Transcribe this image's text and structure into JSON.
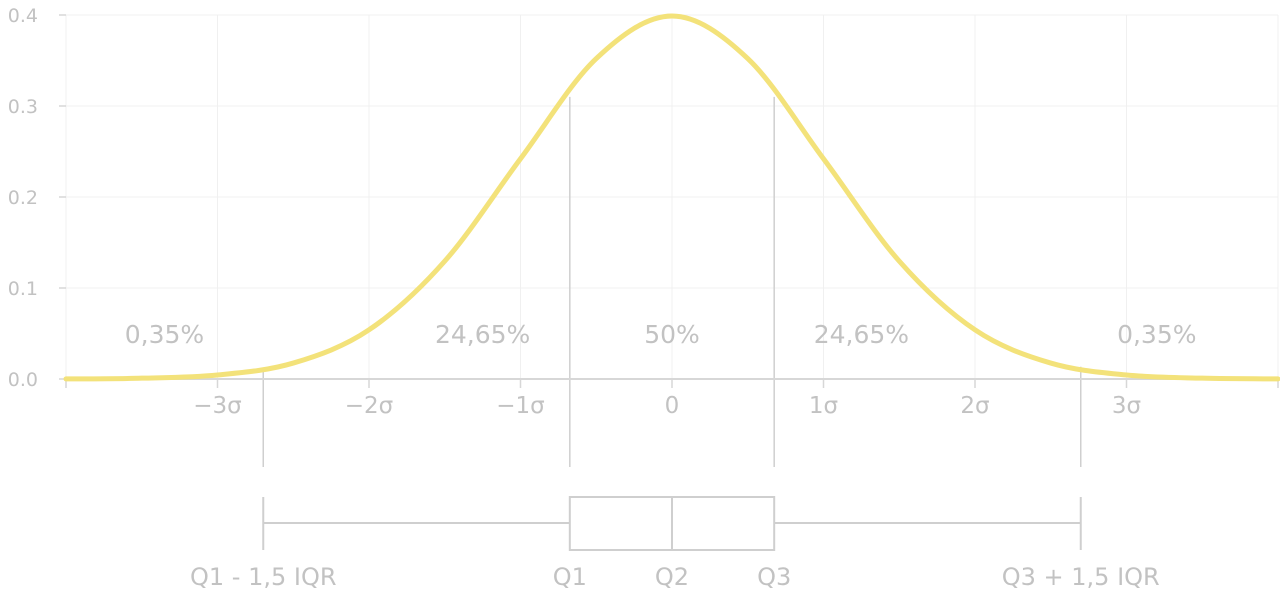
{
  "chart_data": {
    "type": "line",
    "title": "",
    "xlabel": "",
    "ylabel": "",
    "xlim": [
      -4,
      4
    ],
    "ylim": [
      0,
      0.4
    ],
    "grid": true,
    "series": [
      {
        "color": "#f3e27a",
        "x": [
          -4.0,
          -3.5,
          -3.0,
          -2.5,
          -2.0,
          -1.5,
          -1.0,
          -0.5,
          0.0,
          0.5,
          1.0,
          1.5,
          2.0,
          2.5,
          3.0,
          3.5,
          4.0
        ],
        "values": [
          0.0001,
          0.0009,
          0.0044,
          0.0175,
          0.054,
          0.1295,
          0.242,
          0.3521,
          0.3989,
          0.3521,
          0.242,
          0.1295,
          0.054,
          0.0175,
          0.0044,
          0.0009,
          0.0001
        ]
      }
    ],
    "y_ticks": [
      {
        "value": 0.0,
        "label": "0.0"
      },
      {
        "value": 0.1,
        "label": "0.1"
      },
      {
        "value": 0.2,
        "label": "0.2"
      },
      {
        "value": 0.3,
        "label": "0.3"
      },
      {
        "value": 0.4,
        "label": "0.4"
      }
    ],
    "x_ticks": [
      {
        "value": -3,
        "label": "−3σ"
      },
      {
        "value": -2,
        "label": "−2σ"
      },
      {
        "value": -1,
        "label": "−1σ"
      },
      {
        "value": 0,
        "label": "0"
      },
      {
        "value": 1,
        "label": "1σ"
      },
      {
        "value": 2,
        "label": "2σ"
      },
      {
        "value": 3,
        "label": "3σ"
      }
    ],
    "region_boundaries": [
      -2.698,
      -0.6745,
      0.6745,
      2.698
    ],
    "region_labels": [
      {
        "x": -3.35,
        "label": "0,35%"
      },
      {
        "x": -1.25,
        "label": "24,65%"
      },
      {
        "x": 0.0,
        "label": "50%"
      },
      {
        "x": 1.25,
        "label": "24,65%"
      },
      {
        "x": 3.2,
        "label": "0,35%"
      }
    ],
    "boxplot": {
      "whisker_low": -2.698,
      "q1": -0.6745,
      "q2": 0.0,
      "q3": 0.6745,
      "whisker_high": 2.698,
      "labels": [
        {
          "x": -2.698,
          "label": "Q1 - 1,5 IQR"
        },
        {
          "x": -0.6745,
          "label": "Q1"
        },
        {
          "x": 0.0,
          "label": "Q2"
        },
        {
          "x": 0.6745,
          "label": "Q3"
        },
        {
          "x": 2.698,
          "label": "Q3 + 1,5 IQR"
        }
      ]
    }
  }
}
